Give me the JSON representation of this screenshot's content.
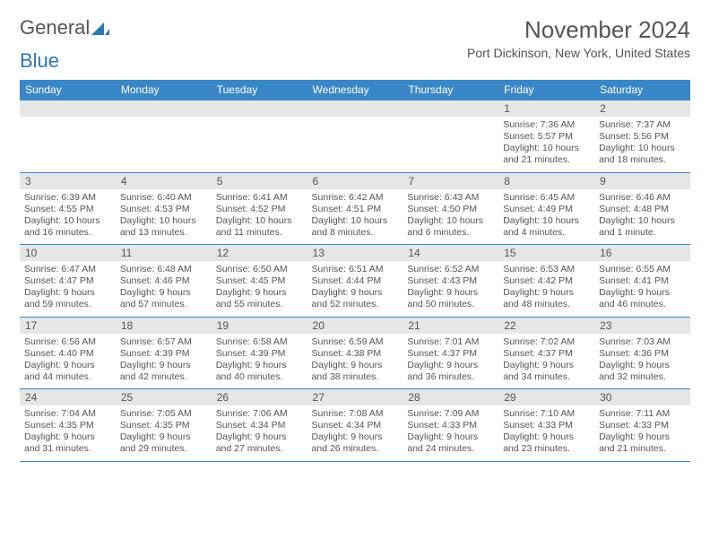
{
  "logo": {
    "text1": "General",
    "text2": "Blue"
  },
  "header": {
    "month_title": "November 2024",
    "location": "Port Dickinson, New York, United States"
  },
  "colors": {
    "header_bg": "#3a87c7",
    "header_text": "#ffffff",
    "daynum_bg": "#e6e6e6",
    "border": "#3a87c7",
    "body_text": "#555555"
  },
  "weekdays": [
    "Sunday",
    "Monday",
    "Tuesday",
    "Wednesday",
    "Thursday",
    "Friday",
    "Saturday"
  ],
  "weeks": [
    [
      null,
      null,
      null,
      null,
      null,
      {
        "n": "1",
        "sr": "7:36 AM",
        "ss": "5:57 PM",
        "dl": "10 hours and 21 minutes."
      },
      {
        "n": "2",
        "sr": "7:37 AM",
        "ss": "5:56 PM",
        "dl": "10 hours and 18 minutes."
      }
    ],
    [
      {
        "n": "3",
        "sr": "6:39 AM",
        "ss": "4:55 PM",
        "dl": "10 hours and 16 minutes."
      },
      {
        "n": "4",
        "sr": "6:40 AM",
        "ss": "4:53 PM",
        "dl": "10 hours and 13 minutes."
      },
      {
        "n": "5",
        "sr": "6:41 AM",
        "ss": "4:52 PM",
        "dl": "10 hours and 11 minutes."
      },
      {
        "n": "6",
        "sr": "6:42 AM",
        "ss": "4:51 PM",
        "dl": "10 hours and 8 minutes."
      },
      {
        "n": "7",
        "sr": "6:43 AM",
        "ss": "4:50 PM",
        "dl": "10 hours and 6 minutes."
      },
      {
        "n": "8",
        "sr": "6:45 AM",
        "ss": "4:49 PM",
        "dl": "10 hours and 4 minutes."
      },
      {
        "n": "9",
        "sr": "6:46 AM",
        "ss": "4:48 PM",
        "dl": "10 hours and 1 minute."
      }
    ],
    [
      {
        "n": "10",
        "sr": "6:47 AM",
        "ss": "4:47 PM",
        "dl": "9 hours and 59 minutes."
      },
      {
        "n": "11",
        "sr": "6:48 AM",
        "ss": "4:46 PM",
        "dl": "9 hours and 57 minutes."
      },
      {
        "n": "12",
        "sr": "6:50 AM",
        "ss": "4:45 PM",
        "dl": "9 hours and 55 minutes."
      },
      {
        "n": "13",
        "sr": "6:51 AM",
        "ss": "4:44 PM",
        "dl": "9 hours and 52 minutes."
      },
      {
        "n": "14",
        "sr": "6:52 AM",
        "ss": "4:43 PM",
        "dl": "9 hours and 50 minutes."
      },
      {
        "n": "15",
        "sr": "6:53 AM",
        "ss": "4:42 PM",
        "dl": "9 hours and 48 minutes."
      },
      {
        "n": "16",
        "sr": "6:55 AM",
        "ss": "4:41 PM",
        "dl": "9 hours and 46 minutes."
      }
    ],
    [
      {
        "n": "17",
        "sr": "6:56 AM",
        "ss": "4:40 PM",
        "dl": "9 hours and 44 minutes."
      },
      {
        "n": "18",
        "sr": "6:57 AM",
        "ss": "4:39 PM",
        "dl": "9 hours and 42 minutes."
      },
      {
        "n": "19",
        "sr": "6:58 AM",
        "ss": "4:39 PM",
        "dl": "9 hours and 40 minutes."
      },
      {
        "n": "20",
        "sr": "6:59 AM",
        "ss": "4:38 PM",
        "dl": "9 hours and 38 minutes."
      },
      {
        "n": "21",
        "sr": "7:01 AM",
        "ss": "4:37 PM",
        "dl": "9 hours and 36 minutes."
      },
      {
        "n": "22",
        "sr": "7:02 AM",
        "ss": "4:37 PM",
        "dl": "9 hours and 34 minutes."
      },
      {
        "n": "23",
        "sr": "7:03 AM",
        "ss": "4:36 PM",
        "dl": "9 hours and 32 minutes."
      }
    ],
    [
      {
        "n": "24",
        "sr": "7:04 AM",
        "ss": "4:35 PM",
        "dl": "9 hours and 31 minutes."
      },
      {
        "n": "25",
        "sr": "7:05 AM",
        "ss": "4:35 PM",
        "dl": "9 hours and 29 minutes."
      },
      {
        "n": "26",
        "sr": "7:06 AM",
        "ss": "4:34 PM",
        "dl": "9 hours and 27 minutes."
      },
      {
        "n": "27",
        "sr": "7:08 AM",
        "ss": "4:34 PM",
        "dl": "9 hours and 26 minutes."
      },
      {
        "n": "28",
        "sr": "7:09 AM",
        "ss": "4:33 PM",
        "dl": "9 hours and 24 minutes."
      },
      {
        "n": "29",
        "sr": "7:10 AM",
        "ss": "4:33 PM",
        "dl": "9 hours and 23 minutes."
      },
      {
        "n": "30",
        "sr": "7:11 AM",
        "ss": "4:33 PM",
        "dl": "9 hours and 21 minutes."
      }
    ]
  ],
  "labels": {
    "sunrise": "Sunrise: ",
    "sunset": "Sunset: ",
    "daylight": "Daylight: "
  }
}
